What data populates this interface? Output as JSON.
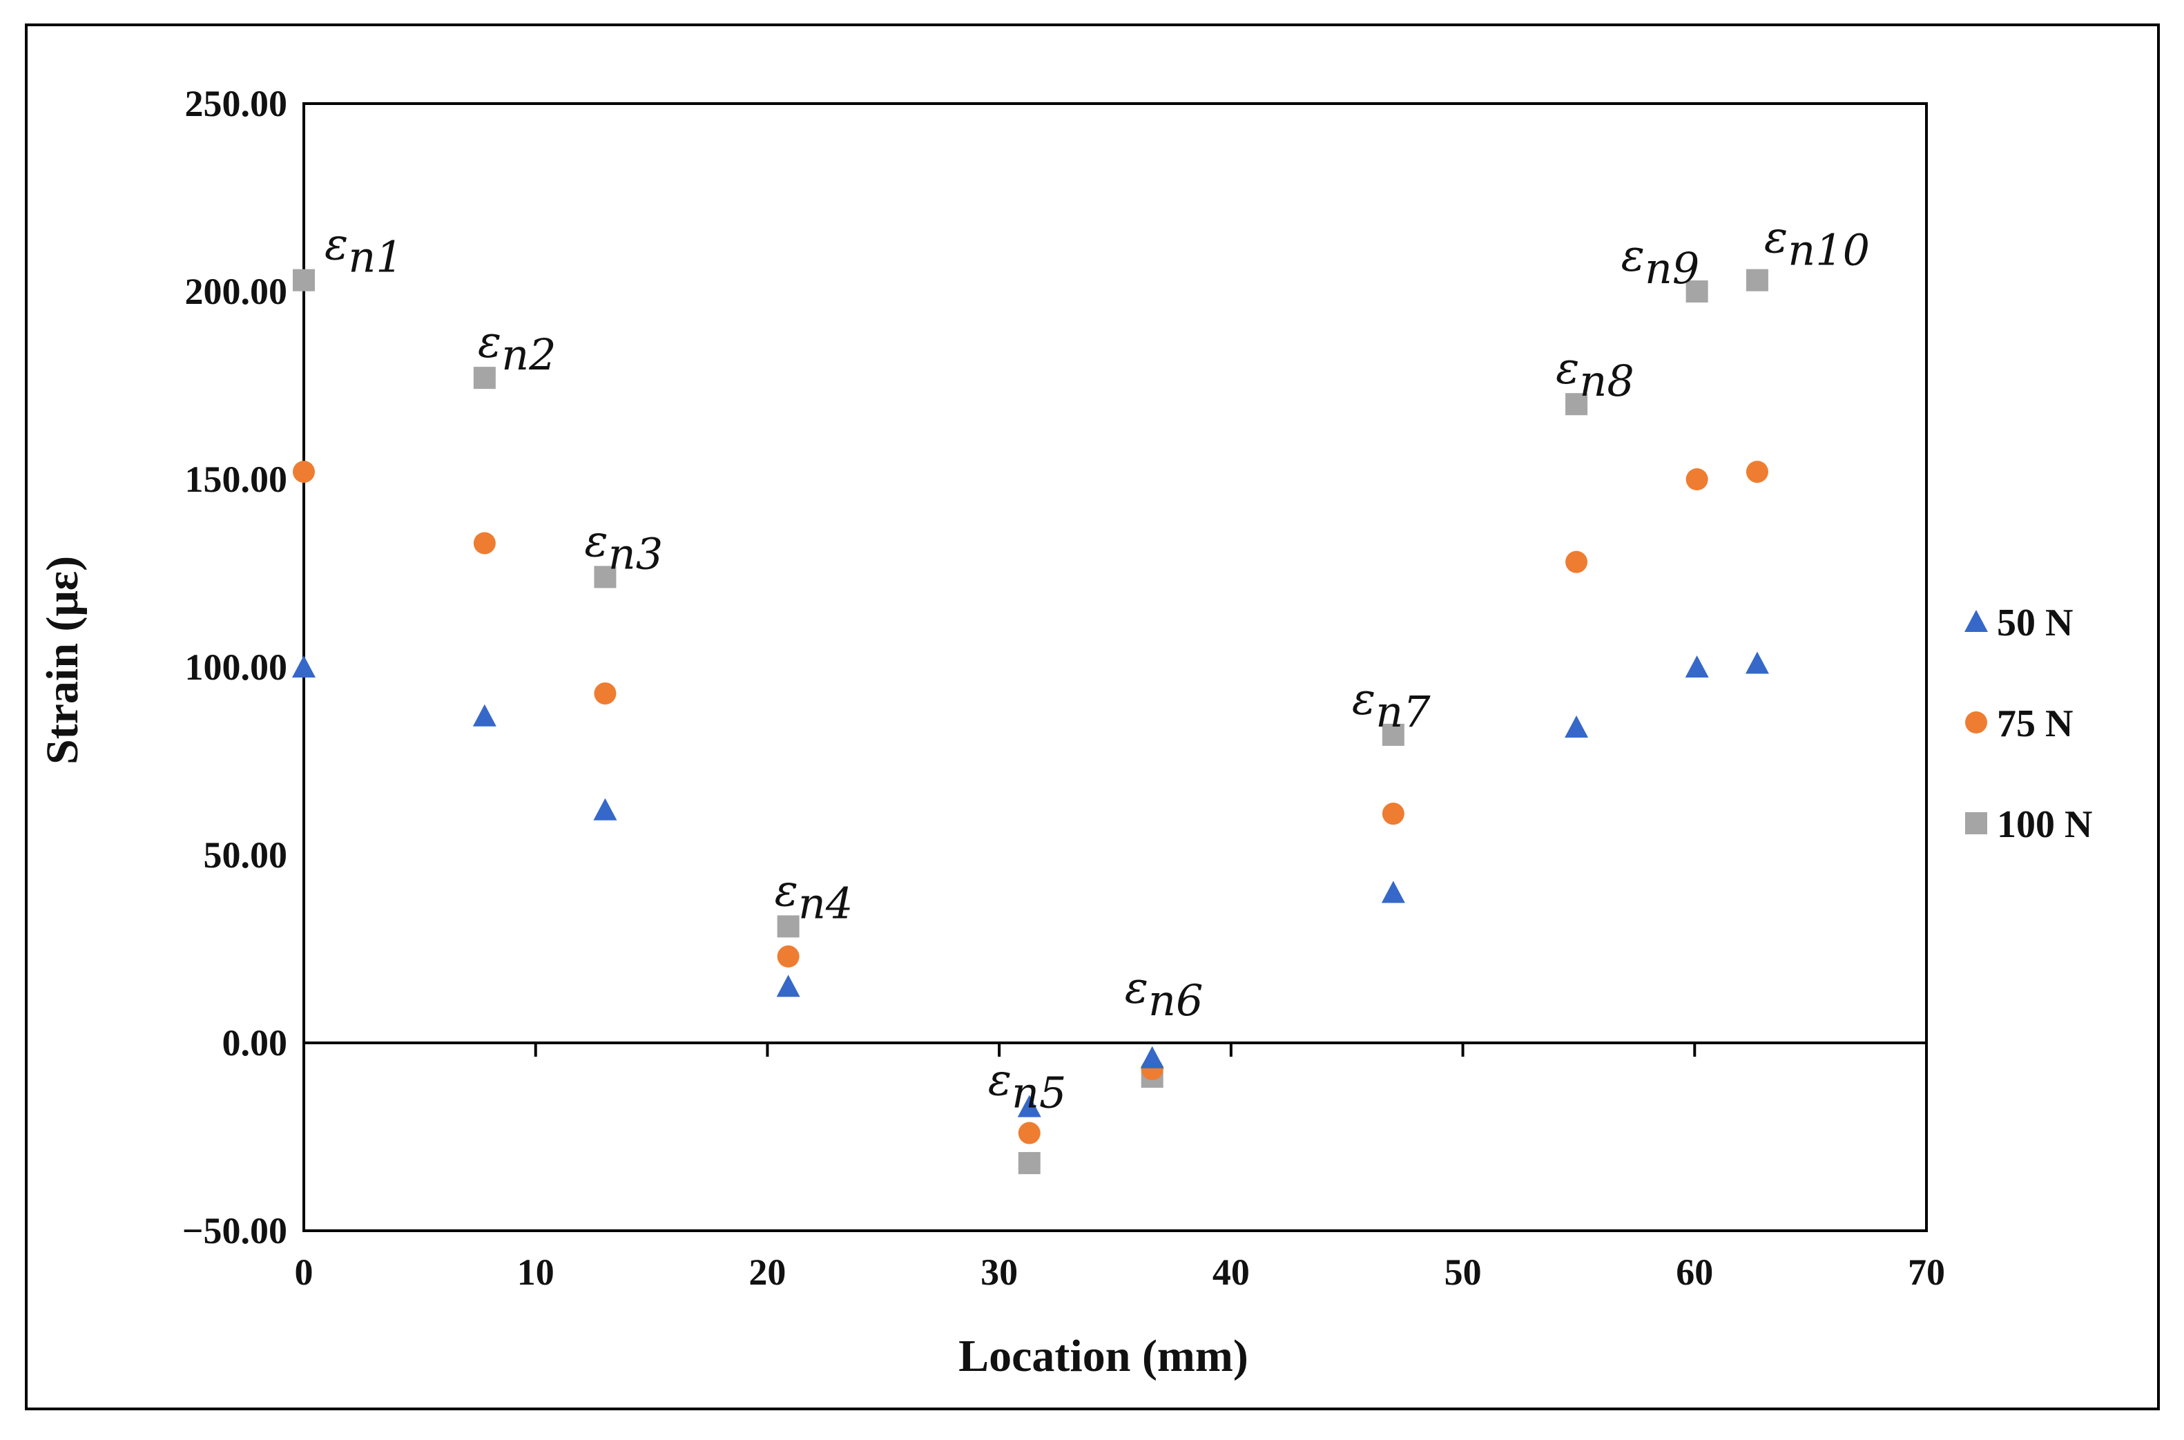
{
  "chart_data": {
    "type": "scatter",
    "title": "",
    "xlabel": "Location (mm)",
    "ylabel": "Strain (με)",
    "xlim": [
      0,
      70
    ],
    "ylim": [
      -50,
      250
    ],
    "x_ticks": [
      "0",
      "10",
      "20",
      "30",
      "40",
      "50",
      "60",
      "70"
    ],
    "y_ticks": [
      "-50.00",
      "0.00",
      "50.00",
      "100.00",
      "150.00",
      "200.00",
      "250.00"
    ],
    "x": [
      0,
      7.8,
      13,
      20.9,
      31.3,
      36.6,
      47,
      54.9,
      60.1,
      62.7
    ],
    "point_labels": [
      "εn1",
      "εn2",
      "εn3",
      "εn4",
      "εn5",
      "εn6",
      "εn7",
      "εn8",
      "εn9",
      "εn10"
    ],
    "point_label_pieces": [
      {
        "sym": "ε",
        "sub": "n1"
      },
      {
        "sym": "ε",
        "sub": "n2"
      },
      {
        "sym": "ε",
        "sub": "n3"
      },
      {
        "sym": "ε",
        "sub": "n4"
      },
      {
        "sym": "ε",
        "sub": "n5"
      },
      {
        "sym": "ε",
        "sub": "n6"
      },
      {
        "sym": "ε",
        "sub": "n7"
      },
      {
        "sym": "ε",
        "sub": "n8"
      },
      {
        "sym": "ε",
        "sub": "n9"
      },
      {
        "sym": "ε",
        "sub": "n10"
      }
    ],
    "series": [
      {
        "name": "50 N",
        "marker": "triangle",
        "color": "#3568C8",
        "values": [
          100,
          87,
          62,
          15,
          -17,
          -4,
          40,
          84,
          100,
          101
        ]
      },
      {
        "name": "75 N",
        "marker": "circle",
        "color": "#EE7D31",
        "values": [
          152,
          133,
          93,
          23,
          -24,
          -7,
          61,
          128,
          150,
          152
        ]
      },
      {
        "name": "100 N",
        "marker": "square",
        "color": "#A5A5A5",
        "values": [
          203,
          177,
          124,
          31,
          -32,
          -9,
          82,
          170,
          200,
          203
        ]
      }
    ],
    "grid": false,
    "legend_position": "right"
  }
}
